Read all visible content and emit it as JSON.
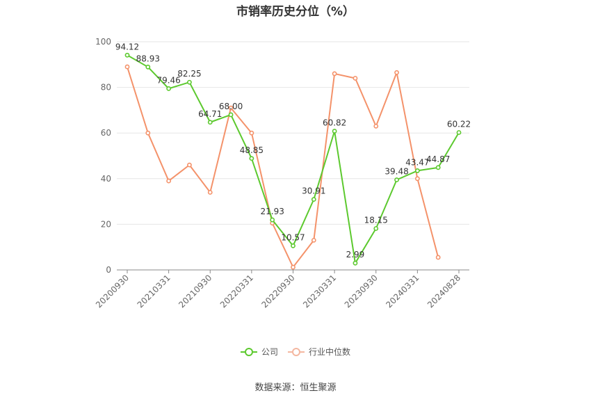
{
  "chart_data": {
    "type": "line",
    "title": "市销率历史分位（%）",
    "x_tick_labels": [
      "20200930",
      "20210331",
      "20210930",
      "20220331",
      "20220930",
      "20230331",
      "20230930",
      "20240331",
      "20240828"
    ],
    "ylim": [
      0,
      100
    ],
    "y_ticks": [
      0,
      20,
      40,
      60,
      80,
      100
    ],
    "grid": "horizontal",
    "legend_position": "bottom",
    "source": "数据来源：恒生聚源",
    "series": [
      {
        "name": "公司",
        "color": "#5cc92e",
        "values": [
          94.12,
          88.93,
          79.46,
          82.25,
          64.71,
          68.0,
          48.85,
          21.93,
          10.57,
          30.91,
          60.82,
          2.99,
          18.15,
          39.48,
          43.47,
          44.87,
          60.22
        ],
        "labels": [
          "94.12",
          "88.93",
          "79.46",
          "82.25",
          "64.71",
          "68.00",
          "48.85",
          "21.93",
          "10.57",
          "30.91",
          "60.82",
          "2.99",
          "18.15",
          "39.48",
          "43.47",
          "44.87",
          "60.22"
        ]
      },
      {
        "name": "行业中位数",
        "color": "#f4926a",
        "values": [
          89,
          60,
          39,
          46,
          34,
          71,
          60,
          20.5,
          1.2,
          13,
          86,
          84,
          63,
          86.5,
          40,
          5.5,
          null
        ]
      }
    ]
  }
}
